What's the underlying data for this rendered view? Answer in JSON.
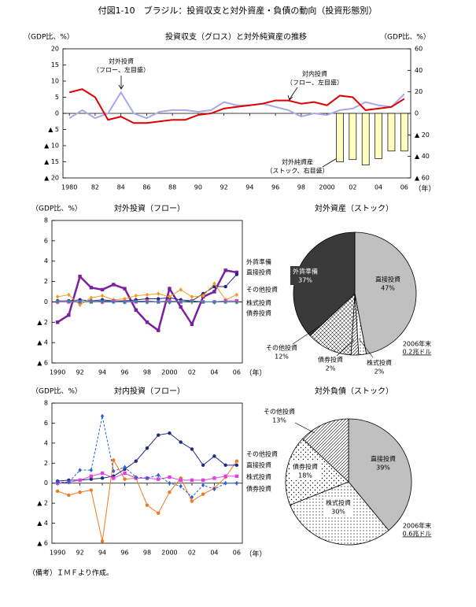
{
  "title": "付図1-10　ブラジル：投資収支と対外資産・負債の動向（投資形態別）",
  "note": "（備考）ＩＭＦより作成。",
  "chart_data": [
    {
      "type": "line",
      "title": "投資収支（グロス）と対外純資産の推移",
      "ylabel": "（GDP比、%）",
      "y2label": "（GDP比、%）",
      "xlabel": "（年）",
      "x": [
        1980,
        1981,
        1982,
        1983,
        1984,
        1985,
        1986,
        1987,
        1988,
        1989,
        1990,
        1991,
        1992,
        1993,
        1994,
        1995,
        1996,
        1997,
        1998,
        1999,
        2000,
        2001,
        2002,
        2003,
        2004,
        2005,
        2006
      ],
      "xlim": [
        1979.5,
        2006.5
      ],
      "xticks": [
        1980,
        {
          "value": 1982,
          "label": "82"
        },
        {
          "value": 1984,
          "label": "84"
        },
        {
          "value": 1986,
          "label": "86"
        },
        {
          "value": 1988,
          "label": "88"
        },
        {
          "value": 1990,
          "label": "90"
        },
        {
          "value": 1992,
          "label": "92"
        },
        {
          "value": 1994,
          "label": "94"
        },
        {
          "value": 1996,
          "label": "96"
        },
        {
          "value": 1998,
          "label": "98"
        },
        2000,
        {
          "value": 2002,
          "label": "02"
        },
        {
          "value": 2004,
          "label": "04"
        },
        {
          "value": 2006,
          "label": "06"
        }
      ],
      "ylim": [
        -20,
        20
      ],
      "yticks": [
        20,
        15,
        10,
        5,
        0,
        {
          "value": -5,
          "label": "▲ 5"
        },
        {
          "value": -10,
          "label": "▲ 10"
        },
        {
          "value": -15,
          "label": "▲ 15"
        },
        {
          "value": -20,
          "label": "▲ 20"
        }
      ],
      "y2lim": [
        -60,
        60
      ],
      "y2ticks": [
        60,
        40,
        20,
        0,
        {
          "value": -20,
          "label": "▲ 20"
        },
        {
          "value": -40,
          "label": "▲ 40"
        },
        {
          "value": -60,
          "label": "▲ 60"
        }
      ],
      "grid": false,
      "series": [
        {
          "name": "対外投資",
          "note": "（フロー、左目盛）",
          "color": "#a8a8e8",
          "width": 2,
          "values": [
            -1.5,
            1,
            -1.5,
            0,
            6.5,
            0,
            -1.5,
            0.5,
            1,
            1,
            0.5,
            1,
            3.5,
            2.5,
            2.5,
            3,
            2,
            1,
            -1,
            0,
            -0.5,
            1,
            1.5,
            3.5,
            2.5,
            2,
            6
          ]
        },
        {
          "name": "対内投資",
          "note": "（フロー、左目盛）",
          "color": "#e00000",
          "width": 2,
          "values": [
            6.5,
            7.5,
            5,
            -2,
            -1,
            -3,
            -3,
            -2.5,
            -2,
            -2,
            -0.5,
            0,
            1.5,
            2,
            2.5,
            3,
            4,
            4,
            3,
            3.5,
            2.5,
            5.5,
            5,
            1,
            1.5,
            2,
            4.5
          ]
        },
        {
          "name": "対外純資産",
          "note": "（ストック、右目盛）",
          "type": "bar",
          "axis": "y2",
          "color": "#ffffc0",
          "values": [
            null,
            null,
            null,
            null,
            null,
            null,
            null,
            null,
            null,
            null,
            null,
            null,
            null,
            null,
            null,
            null,
            null,
            null,
            null,
            null,
            null,
            -45,
            -43,
            -48,
            -42,
            -35,
            -35
          ]
        }
      ]
    },
    {
      "type": "line",
      "title": "対外投資（フロー）",
      "ylabel": "（GDP比、%）",
      "xlabel": "（年）",
      "x": [
        1990,
        1991,
        1992,
        1993,
        1994,
        1995,
        1996,
        1997,
        1998,
        1999,
        2000,
        2001,
        2002,
        2003,
        2004,
        2005,
        2006
      ],
      "xlim": [
        1989.5,
        2006.5
      ],
      "xticks": [
        1990,
        {
          "value": 1992,
          "label": "92"
        },
        {
          "value": 1994,
          "label": "94"
        },
        {
          "value": 1996,
          "label": "96"
        },
        {
          "value": 1998,
          "label": "98"
        },
        2000,
        {
          "value": 2002,
          "label": "02"
        },
        {
          "value": 2004,
          "label": "04"
        },
        {
          "value": 2006,
          "label": "06"
        }
      ],
      "ylim": [
        -6,
        8
      ],
      "yticks": [
        8,
        6,
        4,
        2,
        0,
        {
          "value": -2,
          "label": "▲ 2"
        },
        {
          "value": -4,
          "label": "▲ 4"
        },
        {
          "value": -6,
          "label": "▲ 6"
        }
      ],
      "grid": false,
      "series": [
        {
          "name": "外貨準備",
          "color": "#7a1fa0",
          "width": 2.5,
          "marker": "square",
          "values": [
            -2,
            -1.3,
            2.5,
            1.4,
            1.2,
            1.7,
            1.3,
            -0.8,
            -2,
            -2.8,
            1.3,
            -0.5,
            -2.2,
            0.5,
            1,
            3.1,
            2.9
          ]
        },
        {
          "name": "直接投資",
          "color": "#1f2a80",
          "width": 1,
          "marker": "circle",
          "values": [
            0.1,
            0.1,
            0.2,
            0.1,
            0.2,
            0.1,
            0.1,
            0.2,
            0.3,
            0.3,
            0.4,
            0.2,
            0.1,
            0.8,
            1.5,
            1.5,
            2.7
          ]
        },
        {
          "name": "その他投資",
          "color": "#f39c1e",
          "width": 1,
          "marker": "diamond",
          "values": [
            0.5,
            0.7,
            -0.3,
            0.4,
            0.6,
            0.2,
            0.3,
            0.6,
            0.7,
            0.8,
            0.5,
            1.2,
            0.5,
            0.6,
            1.8,
            0.2,
            0.7
          ]
        },
        {
          "name": "株式投資",
          "color": "#e040c0",
          "width": 1,
          "marker": "square",
          "values": [
            0,
            0,
            0,
            0,
            0,
            0.1,
            0,
            0,
            0.1,
            0,
            0.1,
            0,
            0.1,
            0,
            0,
            0.1,
            0.1
          ]
        },
        {
          "name": "債券投資",
          "color": "#2090a0",
          "width": 1,
          "marker": "triangle",
          "values": [
            0.1,
            0.1,
            0,
            0,
            0.1,
            0,
            0,
            0.1,
            0,
            0,
            0,
            0,
            0.1,
            0,
            0,
            0,
            0
          ]
        }
      ]
    },
    {
      "type": "pie",
      "title": "対外資産（ストック）",
      "categories": [
        "直接投資",
        "株式投資",
        "債券投資",
        "その他投資",
        "外貨準備"
      ],
      "values": [
        47,
        2,
        2,
        12,
        37
      ],
      "value_labels": [
        "47%",
        "2%",
        "2%",
        "12%",
        "37%"
      ],
      "colors": [
        "#c0c0c0",
        "#ffffff",
        "#ffffff",
        "#ffffff",
        "#3a3a3a"
      ],
      "patterns": [
        "solid",
        "dots",
        "hatch",
        "cross",
        "solid"
      ],
      "note": [
        "2006年末",
        "0.2兆ドル"
      ]
    },
    {
      "type": "line",
      "title": "対内投資（フロー）",
      "ylabel": "（GDP比、%）",
      "xlabel": "（年）",
      "x": [
        1990,
        1991,
        1992,
        1993,
        1994,
        1995,
        1996,
        1997,
        1998,
        1999,
        2000,
        2001,
        2002,
        2003,
        2004,
        2005,
        2006
      ],
      "xlim": [
        1989.5,
        2006.5
      ],
      "xticks": [
        1990,
        {
          "value": 1992,
          "label": "92"
        },
        {
          "value": 1994,
          "label": "94"
        },
        {
          "value": 1996,
          "label": "96"
        },
        {
          "value": 1998,
          "label": "98"
        },
        2000,
        {
          "value": 2002,
          "label": "02"
        },
        {
          "value": 2004,
          "label": "04"
        },
        {
          "value": 2006,
          "label": "06"
        }
      ],
      "ylim": [
        -6,
        8
      ],
      "yticks": [
        8,
        6,
        4,
        2,
        0,
        {
          "value": -2,
          "label": "▲ 2"
        },
        {
          "value": -4,
          "label": "▲ 4"
        },
        {
          "value": -6,
          "label": "▲ 6"
        }
      ],
      "grid": false,
      "series": [
        {
          "name": "その他投資",
          "color": "#f07820",
          "width": 1,
          "marker": "circle",
          "values": [
            -0.8,
            -1.2,
            -0.9,
            -0.7,
            -5.8,
            2.3,
            0.4,
            0.5,
            -2.2,
            -3,
            -0.9,
            0.5,
            -1.8,
            -1.1,
            -0.5,
            0.6,
            2.2
          ]
        },
        {
          "name": "直接投資",
          "color": "#1f2a80",
          "width": 1,
          "marker": "circle",
          "values": [
            0.2,
            0.3,
            0.3,
            0.4,
            0.5,
            0.7,
            1.4,
            2.2,
            3.5,
            4.8,
            5,
            4.1,
            3.4,
            1.8,
            2.7,
            1.8,
            1.8
          ]
        },
        {
          "name": "株式投資",
          "color": "#e040e0",
          "width": 1,
          "marker": "square",
          "values": [
            0,
            0.1,
            0.3,
            0.7,
            1,
            0.5,
            1,
            0.5,
            0.5,
            0.4,
            0.6,
            0.3,
            0.3,
            0.3,
            0.5,
            0.7,
            0.7
          ]
        },
        {
          "name": "債券投資",
          "color": "#3060d0",
          "width": 1,
          "marker": "diamond",
          "dash": true,
          "values": [
            0.1,
            0.1,
            1.3,
            1.3,
            6.7,
            1.2,
            1.6,
            0.6,
            0.5,
            0.8,
            0,
            -0.3,
            -1.4,
            -0.2,
            -0.6,
            0,
            0
          ]
        }
      ]
    },
    {
      "type": "pie",
      "title": "対外負債（ストック）",
      "categories": [
        "直接投資",
        "株式投資",
        "債券投資",
        "その他投資"
      ],
      "values": [
        39,
        30,
        18,
        13
      ],
      "value_labels": [
        "39%",
        "30%",
        "18%",
        "13%"
      ],
      "colors": [
        "#c0c0c0",
        "#ffffff",
        "#ffffff",
        "#ffffff"
      ],
      "patterns": [
        "solid",
        "dots",
        "sdots",
        "hatch"
      ],
      "note": [
        "2006年末",
        "0.6兆ドル"
      ]
    }
  ]
}
